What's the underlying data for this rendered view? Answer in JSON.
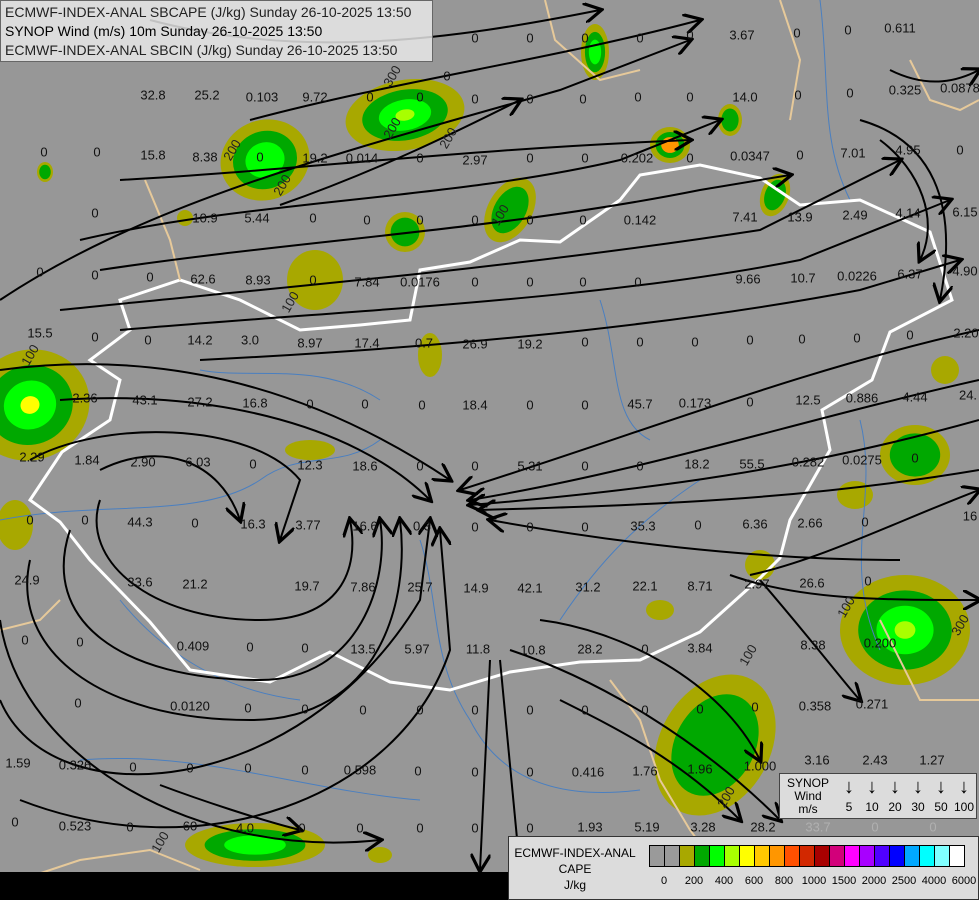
{
  "titles": [
    "ECMWF-INDEX-ANAL SBCAPE (J/kg) Sunday 26-10-2025 13:50",
    "SYNOP Wind (m/s) 10m Sunday 26-10-2025 13:50",
    "ECMWF-INDEX-ANAL SBCIN (J/kg) Sunday 26-10-2025 13:50"
  ],
  "station_values": [
    "0",
    "0",
    "0",
    "0",
    "0",
    "3.67",
    "0",
    "0",
    "0.611",
    "0",
    "32.8",
    "25.2",
    "0.103",
    "9.72",
    "0",
    "0",
    "0",
    "0",
    "0",
    "0",
    "0",
    "14.0",
    "0",
    "0",
    "0.325",
    "0.0878",
    "0",
    "0",
    "15.8",
    "8.38",
    "0",
    "19.2",
    "0.014",
    "0",
    "2.97",
    "0",
    "0",
    "0.202",
    "0",
    "0.0347",
    "0",
    "7.01",
    "4.95",
    "0",
    "0",
    "10.9",
    "5.44",
    "0",
    "0",
    "0",
    "0",
    "0",
    "0",
    "0.142",
    "7.41",
    "13.9",
    "2.49",
    "4.14",
    "6.15",
    "0",
    "0",
    "0",
    "62.6",
    "8.93",
    "0",
    "7.84",
    "0.0176",
    "0",
    "0",
    "0",
    "0",
    "9.66",
    "10.7",
    "0.0226",
    "6.37",
    "4.90",
    "15.5",
    "0",
    "0",
    "14.2",
    "3.0",
    "8.97",
    "17.4",
    "0.7",
    "26.9",
    "19.2",
    "0",
    "0",
    "0",
    "0",
    "0",
    "0",
    "0",
    "2.20",
    "2.36",
    "43.1",
    "27.2",
    "16.8",
    "0",
    "0",
    "0",
    "18.4",
    "0",
    "0",
    "45.7",
    "0.173",
    "0",
    "12.5",
    "0.886",
    "4.44",
    "24.",
    "2.29",
    "1.84",
    "2.90",
    "6.03",
    "0",
    "12.3",
    "18.6",
    "0",
    "0",
    "5.31",
    "0",
    "0",
    "18.2",
    "55.5",
    "0.282",
    "0.0275",
    "0",
    "0",
    "0",
    "44.3",
    "0",
    "16.3",
    "3.77",
    "16.6",
    "0.3",
    "0",
    "0",
    "0",
    "35.3",
    "0",
    "6.36",
    "2.66",
    "0",
    "16",
    "24.9",
    "33.6",
    "21.2",
    "19.7",
    "7.86",
    "25.7",
    "14.9",
    "42.1",
    "31.2",
    "22.1",
    "8.71",
    "2.97",
    "26.6",
    "0",
    "0",
    "0",
    "0.409",
    "0",
    "0",
    "13.5",
    "5.97",
    "11.8",
    "10.8",
    "28.2",
    "0",
    "3.84",
    "8.38",
    "0.200",
    "0",
    "0.0120",
    "0",
    "0",
    "0",
    "0",
    "0",
    "0",
    "0",
    "0",
    "0",
    "0",
    "0.358",
    "0.271",
    "1.59",
    "0.326",
    "0",
    "0",
    "0",
    "0",
    "0.598",
    "0",
    "0",
    "0",
    "0.416",
    "1.76",
    "1.96",
    "1.000",
    "3.16",
    "2.43",
    "1.27",
    "0",
    "0.523",
    "0",
    "60",
    "4.0",
    "0",
    "0",
    "0",
    "0",
    "0",
    "1.93",
    "5.19",
    "3.28",
    "28.2",
    "33.7",
    "0",
    "0"
  ],
  "contour_labels": [
    "100",
    "200",
    "200",
    "300",
    "200",
    "100",
    "100",
    "100",
    "100",
    "200",
    "300",
    "200",
    "100"
  ],
  "synop_legend": {
    "title": [
      "SYNOP",
      "Wind",
      "m/s"
    ],
    "speeds": [
      "5",
      "10",
      "20",
      "30",
      "50",
      "100"
    ],
    "arrow_glyph": "↓"
  },
  "cape_legend": {
    "title": [
      "ECMWF-INDEX-ANAL",
      "CAPE",
      "J/kg"
    ],
    "colors": [
      "#9a9a9a",
      "#9a9a9a",
      "#a8a800",
      "#00a800",
      "#00ff00",
      "#a8ff00",
      "#ffff00",
      "#ffc800",
      "#ff9600",
      "#ff5000",
      "#d22800",
      "#a80000",
      "#d2007a",
      "#ff00ff",
      "#a800ff",
      "#5000ff",
      "#0000ff",
      "#00a8ff",
      "#00ffff",
      "#80ffff",
      "#ffffff"
    ],
    "ticks": [
      "0",
      "200",
      "400",
      "600",
      "800",
      "1000",
      "1500",
      "2000",
      "2500",
      "4000",
      "6000"
    ]
  }
}
